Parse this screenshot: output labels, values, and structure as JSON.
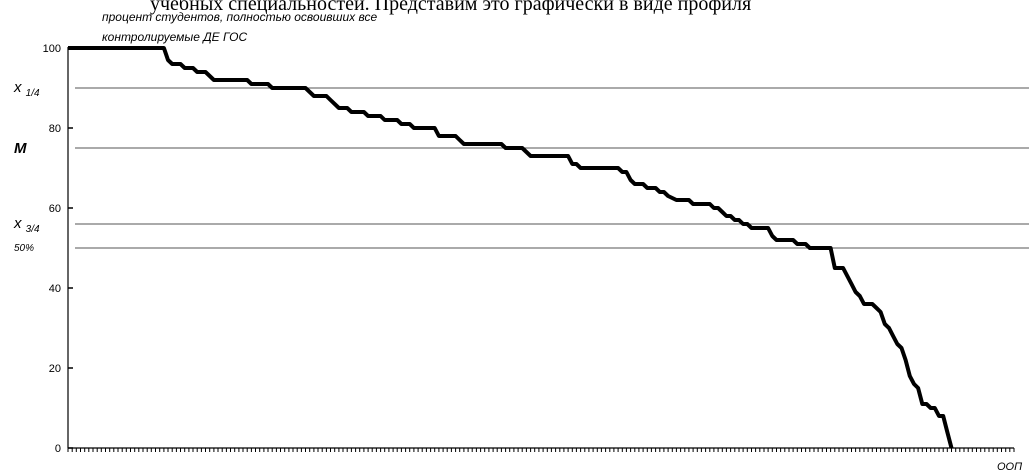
{
  "header_clip": "учебных специальностей. Представим это графически в виде профиля",
  "chart_data": {
    "type": "line",
    "ylabel": [
      "процент студентов, полностью освоивших все",
      "контролируемые ДЕ ГОС"
    ],
    "xlabel": "ООП",
    "ylim": [
      0,
      100
    ],
    "yticks": [
      0,
      20,
      40,
      60,
      80,
      100
    ],
    "x_count": 228,
    "reference_lines": [
      {
        "label": "x",
        "sub": "1/4",
        "value": 90
      },
      {
        "label": "M",
        "sub": "",
        "value": 75
      },
      {
        "label": "x",
        "sub": "3/4",
        "value": 56
      },
      {
        "label": "50%",
        "sub": "",
        "value": 50
      }
    ],
    "points": [
      [
        0,
        100
      ],
      [
        23,
        100
      ],
      [
        24,
        97
      ],
      [
        25,
        96
      ],
      [
        27,
        96
      ],
      [
        28,
        95
      ],
      [
        30,
        95
      ],
      [
        31,
        94
      ],
      [
        33,
        94
      ],
      [
        34,
        93
      ],
      [
        35,
        92
      ],
      [
        43,
        92
      ],
      [
        44,
        91
      ],
      [
        48,
        91
      ],
      [
        49,
        90
      ],
      [
        56,
        90
      ],
      [
        57,
        90
      ],
      [
        58,
        89
      ],
      [
        59,
        88
      ],
      [
        62,
        88
      ],
      [
        63,
        87
      ],
      [
        65,
        85
      ],
      [
        67,
        85
      ],
      [
        68,
        84
      ],
      [
        71,
        84
      ],
      [
        72,
        83
      ],
      [
        75,
        83
      ],
      [
        76,
        82
      ],
      [
        79,
        82
      ],
      [
        80,
        81
      ],
      [
        82,
        81
      ],
      [
        83,
        80
      ],
      [
        88,
        80
      ],
      [
        89,
        78
      ],
      [
        93,
        78
      ],
      [
        94,
        77
      ],
      [
        95,
        76
      ],
      [
        104,
        76
      ],
      [
        105,
        75
      ],
      [
        109,
        75
      ],
      [
        110,
        74
      ],
      [
        111,
        73
      ],
      [
        120,
        73
      ],
      [
        121,
        71
      ],
      [
        122,
        71
      ],
      [
        123,
        70
      ],
      [
        132,
        70
      ],
      [
        133,
        69
      ],
      [
        134,
        69
      ],
      [
        135,
        67
      ],
      [
        136,
        66
      ],
      [
        138,
        66
      ],
      [
        139,
        65
      ],
      [
        141,
        65
      ],
      [
        142,
        64
      ],
      [
        143,
        64
      ],
      [
        144,
        63
      ],
      [
        146,
        62
      ],
      [
        149,
        62
      ],
      [
        150,
        61
      ],
      [
        154,
        61
      ],
      [
        155,
        60
      ],
      [
        156,
        60
      ],
      [
        157,
        59
      ],
      [
        158,
        58
      ],
      [
        159,
        58
      ],
      [
        160,
        57
      ],
      [
        161,
        57
      ],
      [
        162,
        56
      ],
      [
        163,
        56
      ],
      [
        164,
        55
      ],
      [
        168,
        55
      ],
      [
        169,
        53
      ],
      [
        170,
        52
      ],
      [
        174,
        52
      ],
      [
        175,
        51
      ],
      [
        177,
        51
      ],
      [
        178,
        50
      ],
      [
        183,
        50
      ],
      [
        184,
        45
      ],
      [
        186,
        45
      ],
      [
        187,
        43
      ],
      [
        188,
        41
      ],
      [
        189,
        39
      ],
      [
        190,
        38
      ],
      [
        191,
        36
      ],
      [
        193,
        36
      ],
      [
        194,
        35
      ],
      [
        195,
        34
      ],
      [
        196,
        31
      ],
      [
        197,
        30
      ],
      [
        198,
        28
      ],
      [
        199,
        26
      ],
      [
        200,
        25
      ],
      [
        201,
        22
      ],
      [
        202,
        18
      ],
      [
        203,
        16
      ],
      [
        204,
        15
      ],
      [
        205,
        11
      ],
      [
        206,
        11
      ],
      [
        207,
        10
      ],
      [
        208,
        10
      ],
      [
        209,
        8
      ],
      [
        210,
        8
      ],
      [
        211,
        4
      ],
      [
        212,
        0
      ]
    ]
  }
}
